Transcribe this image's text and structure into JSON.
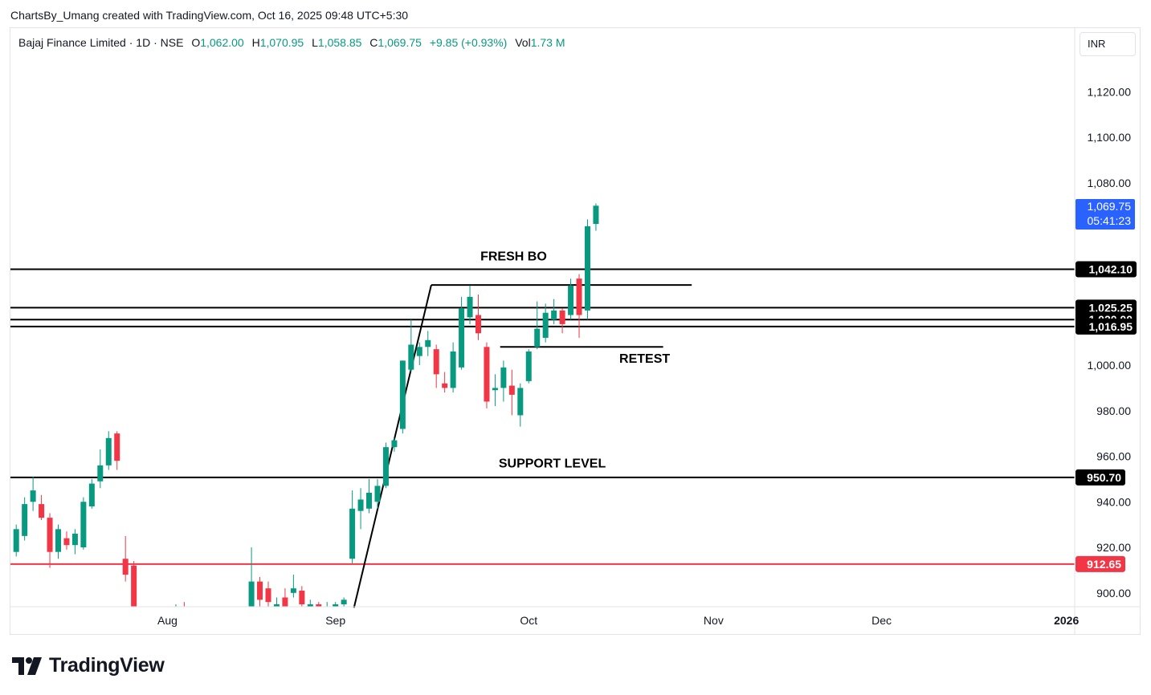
{
  "header": {
    "attribution": "ChartsBy_Umang created with TradingView.com, Oct 16, 2025 09:48 UTC+5:30"
  },
  "legend": {
    "symbol": "Bajaj Finance Limited · 1D · NSE",
    "open_label": "O",
    "open": "1,062.00",
    "high_label": "H",
    "high": "1,070.95",
    "low_label": "L",
    "low": "1,058.85",
    "close_label": "C",
    "close": "1,069.75",
    "change": "+9.85 (+0.93%)",
    "volume_label": "Vol",
    "volume": "1.73 M"
  },
  "currency": "INR",
  "brand": "TradingView",
  "colors": {
    "up": "#089981",
    "down": "#f23645",
    "level_line": "#000000",
    "red_level": "#f23645",
    "price_tag": "#2962ff",
    "axis_text": "#131722",
    "frame": "#e0e3eb"
  },
  "chart_data": {
    "type": "candlestick",
    "title": "Bajaj Finance Limited · 1D · NSE",
    "currency": "INR",
    "ylim": [
      893,
      1135
    ],
    "y_ticks": [
      {
        "value": 1120,
        "label": "1,120.00"
      },
      {
        "value": 1100,
        "label": "1,100.00"
      },
      {
        "value": 1080,
        "label": "1,080.00"
      },
      {
        "value": 1000,
        "label": "1,000.00"
      },
      {
        "value": 980,
        "label": "980.00"
      },
      {
        "value": 960,
        "label": "960.00"
      },
      {
        "value": 940,
        "label": "940.00"
      },
      {
        "value": 920,
        "label": "920.00"
      },
      {
        "value": 900,
        "label": "900.00"
      }
    ],
    "x_ticks": [
      {
        "label": "Aug",
        "index": 18
      },
      {
        "label": "Sep",
        "index": 38
      },
      {
        "label": "Oct",
        "index": 61
      },
      {
        "label": "Nov",
        "index": 83
      },
      {
        "label": "Dec",
        "index": 103
      },
      {
        "label": "2026",
        "index": 125
      }
    ],
    "price_tag": {
      "value": 1069.75,
      "label": "1,069.75",
      "countdown": "05:41:23"
    },
    "levels": [
      {
        "value": 1042.1,
        "label": "1,042.10",
        "color": "#000000"
      },
      {
        "value": 1025.25,
        "label": "1,025.25",
        "color": "#000000"
      },
      {
        "value": 1020.0,
        "label": "1,020.00",
        "color": "#000000"
      },
      {
        "value": 1016.95,
        "label": "1,016.95",
        "color": "#000000"
      },
      {
        "value": 950.7,
        "label": "950.70",
        "color": "#000000"
      },
      {
        "value": 912.65,
        "label": "912.65",
        "color": "#f23645"
      }
    ],
    "drawings": [
      {
        "kind": "line",
        "from": {
          "index": 40.2,
          "value": 893.5
        },
        "to": {
          "index": 49.4,
          "value": 1035.2
        }
      },
      {
        "kind": "line",
        "from": {
          "index": 49.4,
          "value": 1035.2
        },
        "to": {
          "index": 80.4,
          "value": 1035.2
        }
      },
      {
        "kind": "line",
        "from": {
          "index": 57.6,
          "value": 1008
        },
        "to": {
          "index": 77.0,
          "value": 1008
        }
      }
    ],
    "annotations": [
      {
        "text": "FRESH BO",
        "index": 59.2,
        "value": 1046
      },
      {
        "text": "RETEST",
        "index": 74.8,
        "value": 1001
      },
      {
        "text": "SUPPORT LEVEL",
        "index": 63.8,
        "value": 955
      }
    ],
    "candles": [
      {
        "o": 918,
        "h": 930,
        "l": 916,
        "c": 928
      },
      {
        "o": 925,
        "h": 942,
        "l": 923,
        "c": 939
      },
      {
        "o": 940,
        "h": 951,
        "l": 936,
        "c": 945
      },
      {
        "o": 939,
        "h": 943,
        "l": 932,
        "c": 933
      },
      {
        "o": 933,
        "h": 935,
        "l": 911,
        "c": 918
      },
      {
        "o": 918,
        "h": 930,
        "l": 915,
        "c": 928
      },
      {
        "o": 924,
        "h": 927,
        "l": 919,
        "c": 921
      },
      {
        "o": 921,
        "h": 928,
        "l": 917,
        "c": 926
      },
      {
        "o": 920,
        "h": 942,
        "l": 919,
        "c": 940
      },
      {
        "o": 938,
        "h": 950,
        "l": 937,
        "c": 948
      },
      {
        "o": 949,
        "h": 963,
        "l": 946,
        "c": 956
      },
      {
        "o": 956,
        "h": 971,
        "l": 954,
        "c": 968
      },
      {
        "o": 970,
        "h": 971,
        "l": 954,
        "c": 958
      },
      {
        "o": 915,
        "h": 925,
        "l": 905,
        "c": 908
      },
      {
        "o": 912,
        "h": 914,
        "l": 880,
        "c": 885
      },
      {
        "o": 890,
        "h": 892,
        "l": 880,
        "c": 885
      },
      {
        "o": 889,
        "h": 891,
        "l": 880,
        "c": 885
      },
      {
        "o": 884,
        "h": 888,
        "l": 880,
        "c": 886
      },
      {
        "o": 886,
        "h": 890,
        "l": 880,
        "c": 884
      },
      {
        "o": 890,
        "h": 895,
        "l": 880,
        "c": 892
      },
      {
        "o": 893,
        "h": 896,
        "l": 880,
        "c": 888
      },
      {
        "o": 888,
        "h": 894,
        "l": 880,
        "c": 892
      },
      {
        "o": 892,
        "h": 894,
        "l": 880,
        "c": 886
      },
      {
        "o": 886,
        "h": 890,
        "l": 880,
        "c": 889
      },
      {
        "o": 889,
        "h": 891,
        "l": 880,
        "c": 884
      },
      {
        "o": 884,
        "h": 890,
        "l": 880,
        "c": 888
      },
      {
        "o": 888,
        "h": 892,
        "l": 880,
        "c": 885
      },
      {
        "o": 885,
        "h": 891,
        "l": 880,
        "c": 890
      },
      {
        "o": 893,
        "h": 920,
        "l": 891,
        "c": 905
      },
      {
        "o": 905,
        "h": 907,
        "l": 894,
        "c": 897
      },
      {
        "o": 902,
        "h": 905,
        "l": 892,
        "c": 896
      },
      {
        "o": 893,
        "h": 898,
        "l": 889,
        "c": 895
      },
      {
        "o": 898,
        "h": 902,
        "l": 890,
        "c": 893
      },
      {
        "o": 900,
        "h": 908,
        "l": 898,
        "c": 902
      },
      {
        "o": 901,
        "h": 903,
        "l": 893,
        "c": 895
      },
      {
        "o": 894,
        "h": 897,
        "l": 889,
        "c": 895
      },
      {
        "o": 895,
        "h": 896,
        "l": 889,
        "c": 893
      },
      {
        "o": 893,
        "h": 896,
        "l": 890,
        "c": 894
      },
      {
        "o": 894,
        "h": 896,
        "l": 891,
        "c": 895
      },
      {
        "o": 895,
        "h": 898,
        "l": 892,
        "c": 897
      },
      {
        "o": 915,
        "h": 945,
        "l": 913,
        "c": 937
      },
      {
        "o": 936,
        "h": 946,
        "l": 928,
        "c": 941
      },
      {
        "o": 937,
        "h": 950,
        "l": 935,
        "c": 944
      },
      {
        "o": 940,
        "h": 950,
        "l": 937,
        "c": 947
      },
      {
        "o": 947,
        "h": 966,
        "l": 946,
        "c": 964
      },
      {
        "o": 964,
        "h": 968,
        "l": 962,
        "c": 967
      },
      {
        "o": 972,
        "h": 1002,
        "l": 970,
        "c": 1002
      },
      {
        "o": 998,
        "h": 1020,
        "l": 997,
        "c": 1009
      },
      {
        "o": 1004,
        "h": 1010,
        "l": 1000,
        "c": 1008
      },
      {
        "o": 1008,
        "h": 1015,
        "l": 1004,
        "c": 1011
      },
      {
        "o": 1007,
        "h": 1009,
        "l": 990,
        "c": 996
      },
      {
        "o": 992,
        "h": 997,
        "l": 988,
        "c": 990
      },
      {
        "o": 990,
        "h": 1010,
        "l": 988,
        "c": 1006
      },
      {
        "o": 999,
        "h": 1030,
        "l": 998,
        "c": 1025
      },
      {
        "o": 1021,
        "h": 1035,
        "l": 1018,
        "c": 1030
      },
      {
        "o": 1022,
        "h": 1031,
        "l": 1011,
        "c": 1014
      },
      {
        "o": 1008,
        "h": 1010,
        "l": 981,
        "c": 984
      },
      {
        "o": 989,
        "h": 996,
        "l": 982,
        "c": 990
      },
      {
        "o": 990,
        "h": 1002,
        "l": 984,
        "c": 999
      },
      {
        "o": 991,
        "h": 998,
        "l": 978,
        "c": 987
      },
      {
        "o": 978,
        "h": 992,
        "l": 973,
        "c": 990
      },
      {
        "o": 993,
        "h": 1007,
        "l": 992,
        "c": 1006
      },
      {
        "o": 1008,
        "h": 1028,
        "l": 1007,
        "c": 1016
      },
      {
        "o": 1012,
        "h": 1027,
        "l": 1010,
        "c": 1023
      },
      {
        "o": 1020,
        "h": 1029,
        "l": 1018,
        "c": 1024
      },
      {
        "o": 1024,
        "h": 1025,
        "l": 1014,
        "c": 1018
      },
      {
        "o": 1022,
        "h": 1038,
        "l": 1020,
        "c": 1035
      },
      {
        "o": 1038,
        "h": 1040,
        "l": 1012,
        "c": 1022
      },
      {
        "o": 1024,
        "h": 1064,
        "l": 1020,
        "c": 1061
      },
      {
        "o": 1062,
        "h": 1071,
        "l": 1059,
        "c": 1070
      }
    ]
  }
}
